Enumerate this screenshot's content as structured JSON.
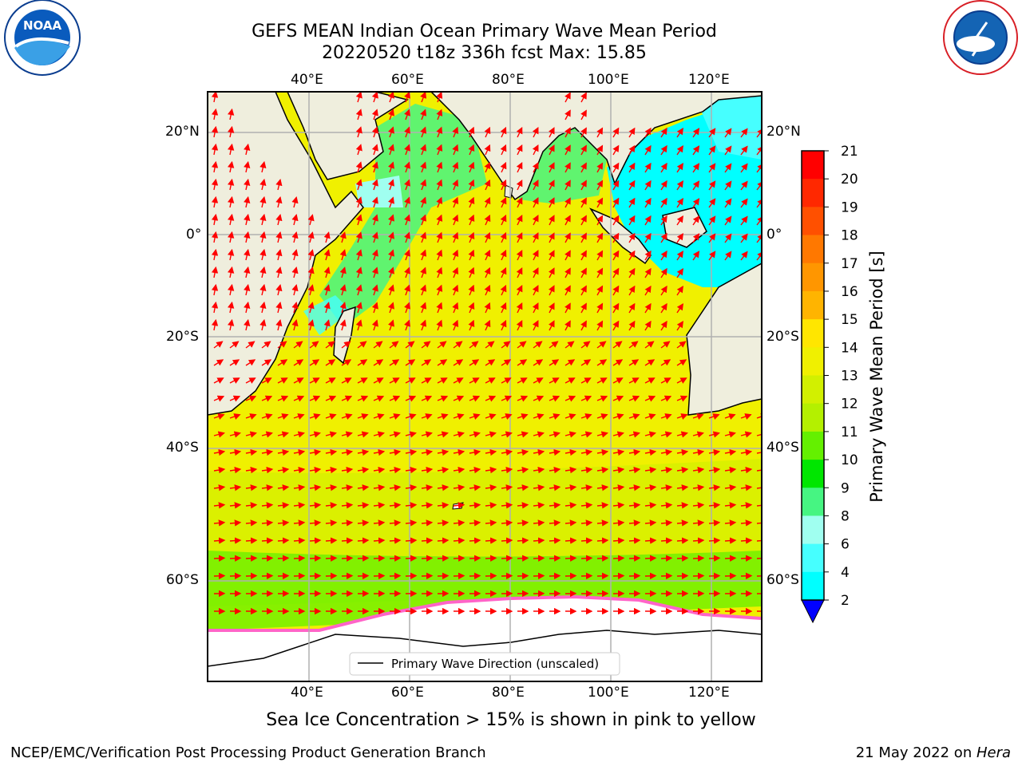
{
  "header": {
    "title_line1": "GEFS MEAN Indian Ocean Primary Wave Mean Period",
    "title_line2": "20220520 t18z 336h fcst   Max: 15.85",
    "left_logo_text": "NOAA",
    "left_logo_ring": "NATIONAL OCEANIC AND ATMOSPHERIC ADMINISTRATION · U.S. DEPARTMENT OF COMMERCE",
    "right_logo_ring": "NATIONAL WEATHER SERVICE"
  },
  "map": {
    "lon_labels": [
      "40°E",
      "60°E",
      "80°E",
      "100°E",
      "120°E"
    ],
    "lat_labels_left": [
      "20°N",
      "0°",
      "20°S",
      "40°S",
      "60°S"
    ],
    "lat_labels_right": [
      "20°N",
      "0°",
      "20°S",
      "40°S",
      "60°S"
    ],
    "legend_label": "Primary Wave Direction (unscaled)",
    "land_color": "#efeedd",
    "ice_color": "#ffffff"
  },
  "colorbar": {
    "label": "Primary Wave Mean Period [s]",
    "ticks": [
      "21",
      "20",
      "19",
      "18",
      "17",
      "16",
      "15",
      "14",
      "13",
      "12",
      "11",
      "10",
      "9",
      "8",
      "6",
      "4",
      "2"
    ],
    "colors": [
      "#ff0000",
      "#ff2800",
      "#ff5000",
      "#ff7800",
      "#ff9600",
      "#ffb400",
      "#ffe600",
      "#f0f000",
      "#d2f000",
      "#b4f000",
      "#64f000",
      "#00e600",
      "#46f582",
      "#a0fff0",
      "#46ffff",
      "#00ffff",
      "#00a0ff"
    ],
    "extend_color": "#0000ff"
  },
  "footer": {
    "subtitle": "Sea Ice Concentration > 15% is shown in pink to yellow",
    "left": "NCEP/EMC/Verification Post Processing Product Generation Branch",
    "right_date": "21 May 2022 on ",
    "right_host": "Hera"
  }
}
